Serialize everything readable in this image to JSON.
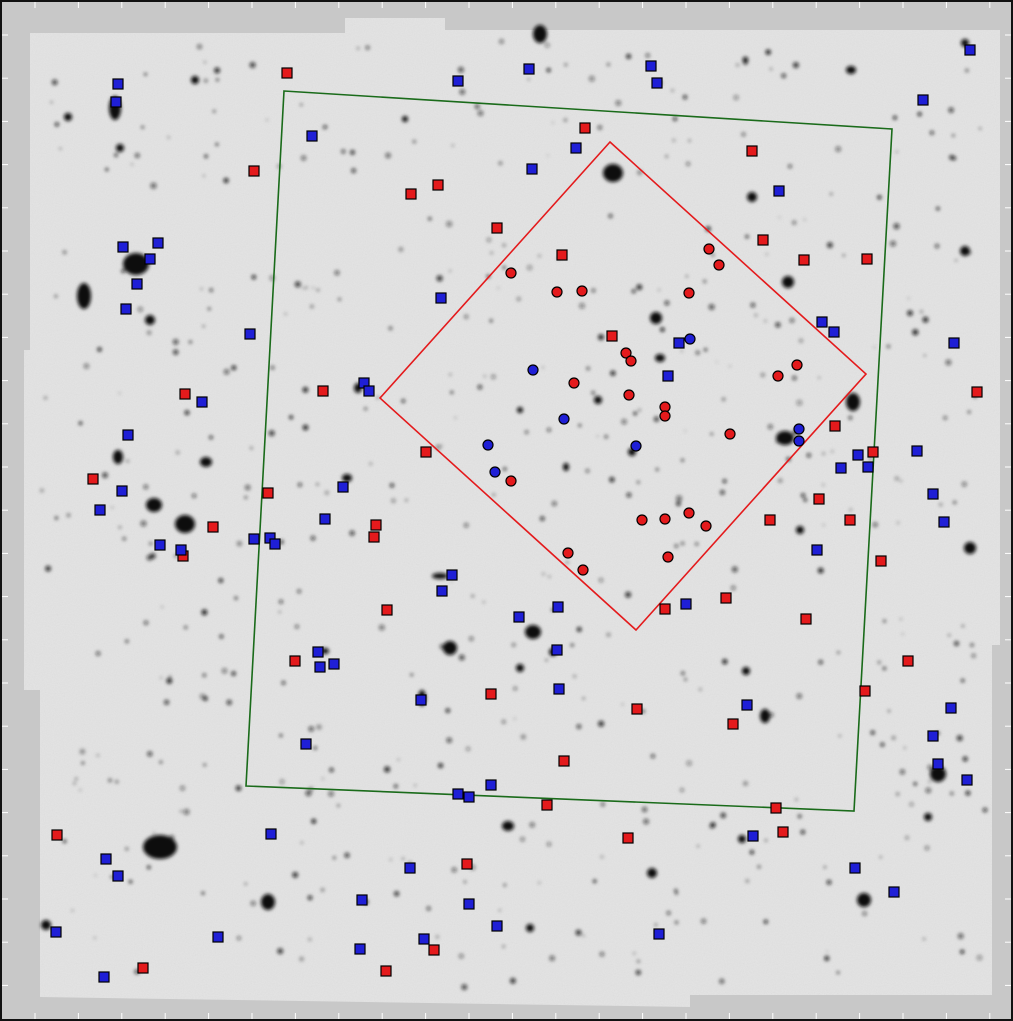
{
  "image": {
    "description_free": true,
    "colors": {
      "background": "#c8c8c8",
      "field": "#e2e2e2",
      "border": "#111111",
      "outer_footprint": "#1a6b1a",
      "inner_footprint": "#e41a1c",
      "red_marker": "#e41a1c",
      "blue_marker": "#1f1fd6",
      "marker_outline": "#000000"
    },
    "marker_shapes": [
      "square",
      "circle"
    ]
  }
}
